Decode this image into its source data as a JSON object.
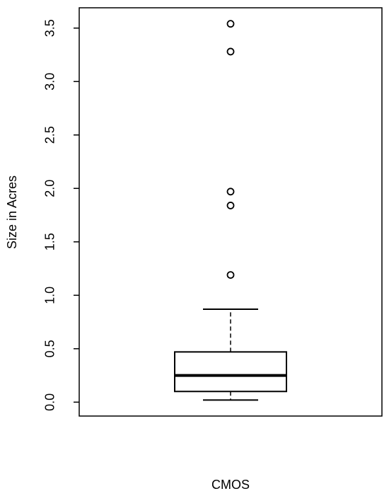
{
  "chart_data": {
    "type": "boxplot",
    "ylabel": "Size in Acres",
    "categories": [
      "CMOS"
    ],
    "whisker_low": [
      0.02
    ],
    "q1": [
      0.1
    ],
    "median": [
      0.25
    ],
    "q3": [
      0.47
    ],
    "whisker_high": [
      0.87
    ],
    "outliers": [
      [
        1.19,
        1.84,
        1.97,
        3.28,
        3.54
      ]
    ],
    "ylim": [
      -0.13,
      3.69
    ],
    "yticks": [
      {
        "value": 0,
        "label": "0.0"
      },
      0.5,
      {
        "value": 1,
        "label": "1.0"
      },
      1.5,
      {
        "value": 2,
        "label": "2.0"
      },
      2.5,
      {
        "value": 3,
        "label": "3.0"
      },
      3.5
    ],
    "color": "#000000"
  }
}
